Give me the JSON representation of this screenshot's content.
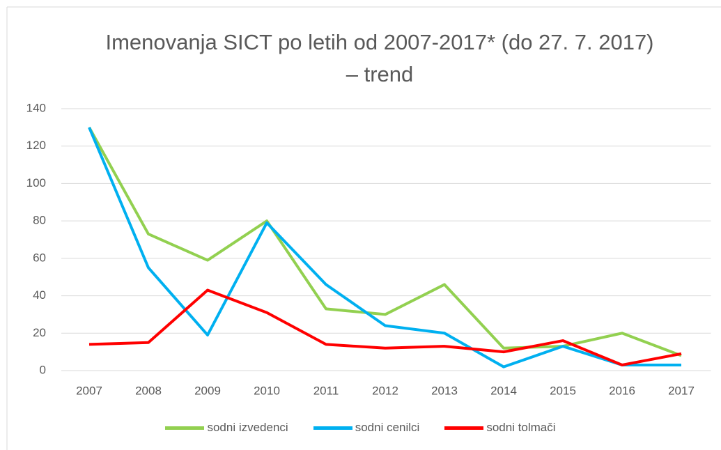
{
  "chart_data": {
    "type": "line",
    "title": "Imenovanja SICT po letih od 2007-2017* (do 27. 7. 2017) – trend",
    "categories": [
      "2007",
      "2008",
      "2009",
      "2010",
      "2011",
      "2012",
      "2013",
      "2014",
      "2015",
      "2016",
      "2017"
    ],
    "series": [
      {
        "name": "sodni izvedenci",
        "color": "#92d050",
        "values": [
          130,
          73,
          59,
          80,
          33,
          30,
          46,
          12,
          13,
          20,
          8
        ]
      },
      {
        "name": "sodni cenilci",
        "color": "#00b0f0",
        "values": [
          130,
          55,
          19,
          79,
          46,
          24,
          20,
          2,
          13,
          3,
          3
        ]
      },
      {
        "name": "sodni tolmači",
        "color": "#ff0000",
        "values": [
          14,
          15,
          43,
          31,
          14,
          12,
          13,
          10,
          16,
          3,
          9
        ]
      }
    ],
    "ylim": [
      0,
      140
    ],
    "yticks": [
      0,
      20,
      40,
      60,
      80,
      100,
      120,
      140
    ],
    "grid": true,
    "legend": "bottom"
  }
}
